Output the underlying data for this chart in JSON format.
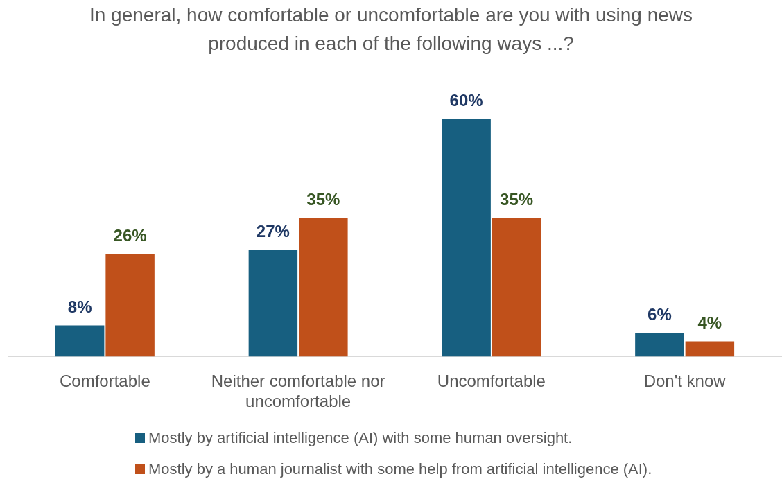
{
  "chart_data": {
    "type": "bar",
    "title": "In general, how comfortable or uncomfortable are you with using news produced in each of the following ways ...?",
    "categories": [
      "Comfortable",
      "Neither comfortable nor uncomfortable",
      "Uncomfortable",
      "Don't know"
    ],
    "series": [
      {
        "name": "Mostly by artificial intelligence (AI) with some human oversight.",
        "color": "#175f80",
        "values": [
          8,
          27,
          60,
          6
        ],
        "value_labels": [
          "8%",
          "27%",
          "60%",
          "6%"
        ]
      },
      {
        "name": "Mostly by a human journalist with some help from artificial intelligence (AI).",
        "color": "#c0501a",
        "values": [
          26,
          35,
          35,
          4
        ],
        "value_labels": [
          "26%",
          "35%",
          "35%",
          "4%"
        ]
      }
    ],
    "legend": "bottom"
  }
}
